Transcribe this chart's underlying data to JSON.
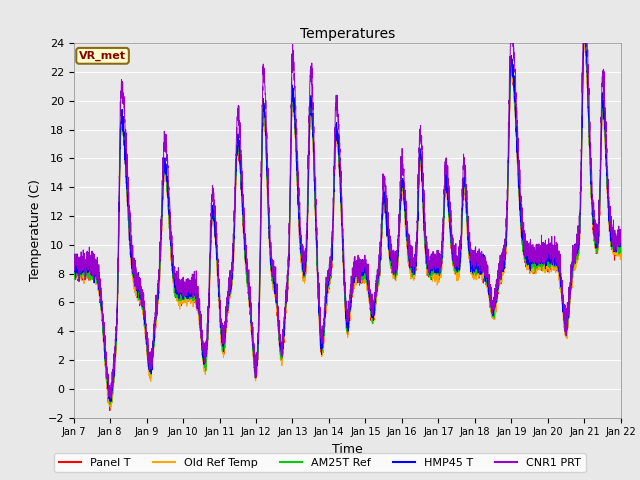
{
  "title": "Temperatures",
  "xlabel": "Time",
  "ylabel": "Temperature (C)",
  "ylim": [
    -2,
    24
  ],
  "annotation_text": "VR_met",
  "annotation_bg": "#FFFFCC",
  "annotation_border": "#8B6914",
  "annotation_text_color": "#8B0000",
  "background_color": "#E8E8E8",
  "grid_color": "#FFFFFF",
  "x_tick_labels": [
    "Jan 7",
    "Jan 8",
    "Jan 9",
    "Jan 10",
    "Jan 11",
    "Jan 12",
    "Jan 13",
    "Jan 14",
    "Jan 15",
    "Jan 16",
    "Jan 17",
    "Jan 18",
    "Jan 19",
    "Jan 20",
    "Jan 21",
    "Jan 22"
  ],
  "legend": [
    "Panel T",
    "Old Ref Temp",
    "AM25T Ref",
    "HMP45 T",
    "CNR1 PRT"
  ],
  "line_colors": [
    "#FF0000",
    "#FFA500",
    "#00CC00",
    "#0000FF",
    "#9900CC"
  ]
}
